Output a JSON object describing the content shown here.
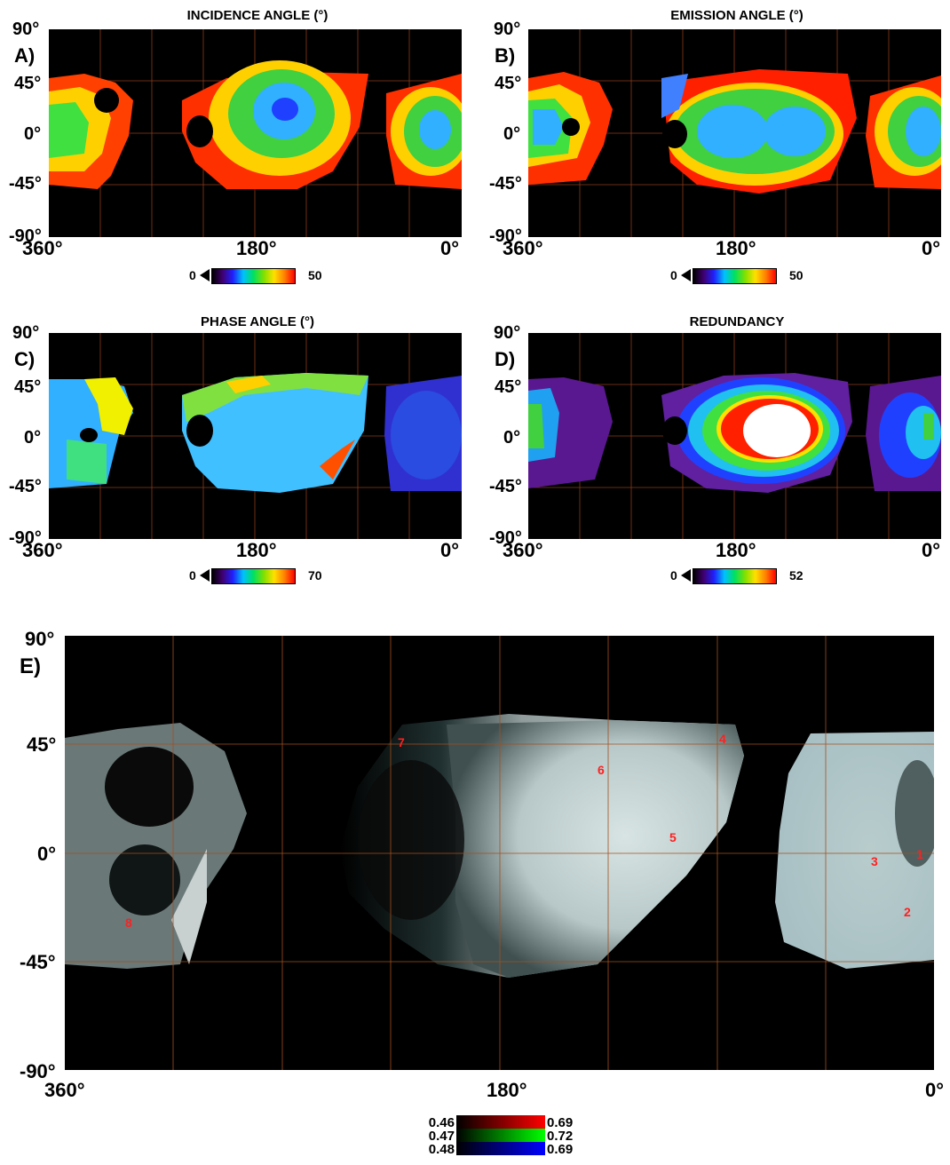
{
  "panels": [
    {
      "letter": "A)",
      "title": "INCIDENCE ANGLE (°)",
      "cmin": "0",
      "cmax": "50"
    },
    {
      "letter": "B)",
      "title": "EMISSION ANGLE (°)",
      "cmin": "0",
      "cmax": "50"
    },
    {
      "letter": "C)",
      "title": "PHASE ANGLE (°)",
      "cmin": "0",
      "cmax": "70"
    },
    {
      "letter": "D)",
      "title": "REDUNDANCY",
      "cmin": "0",
      "cmax": "52"
    }
  ],
  "axes": {
    "lat_90": "90°",
    "lat_45": "45°",
    "lat_0": "0°",
    "lat_m45": "-45°",
    "lat_m90": "-90°",
    "lon_360": "360°",
    "lon_180": "180°",
    "lon_0": "0°"
  },
  "panel_e": {
    "letter": "E)",
    "markers": [
      "1",
      "2",
      "3",
      "4",
      "5",
      "6",
      "7",
      "8"
    ]
  },
  "rgb_legend": {
    "red": {
      "min": "0.46",
      "max": "0.69",
      "color": "#ff0000"
    },
    "green": {
      "min": "0.47",
      "max": "0.72",
      "color": "#00ff00"
    },
    "blue": {
      "min": "0.48",
      "max": "0.69",
      "color": "#0000ff"
    }
  }
}
